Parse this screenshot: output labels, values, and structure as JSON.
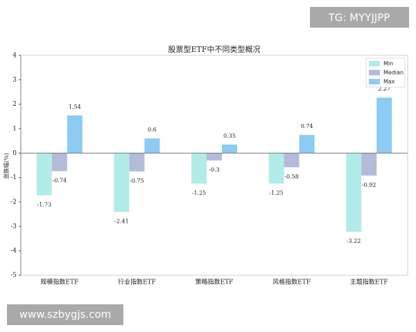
{
  "chart_data": {
    "type": "bar",
    "title": "股票型ETF中不同类型概况",
    "y_label": "涨跌幅(%)",
    "categories": [
      "规模指数ETF",
      "行业指数ETF",
      "策略指数ETF",
      "风格指数ETF",
      "主题指数ETF"
    ],
    "series": [
      {
        "name": "Min",
        "color": "#b2ece8",
        "values": [
          -1.73,
          -2.41,
          -1.25,
          -1.25,
          -3.22
        ]
      },
      {
        "name": "Median",
        "color": "#b3bbd9",
        "values": [
          -0.74,
          -0.75,
          -0.3,
          -0.58,
          -0.92
        ]
      },
      {
        "name": "Max",
        "color": "#8ccbf2",
        "values": [
          1.54,
          0.6,
          0.35,
          0.74,
          2.27
        ]
      }
    ],
    "ylim": [
      -5,
      4
    ],
    "yticks": [
      -5,
      -4,
      -3,
      -2,
      -1,
      0,
      1,
      2,
      3,
      4
    ],
    "legend": "upper right"
  },
  "watermarks": [
    "TG: MYYJJPP",
    "www.szbygjs.com"
  ]
}
